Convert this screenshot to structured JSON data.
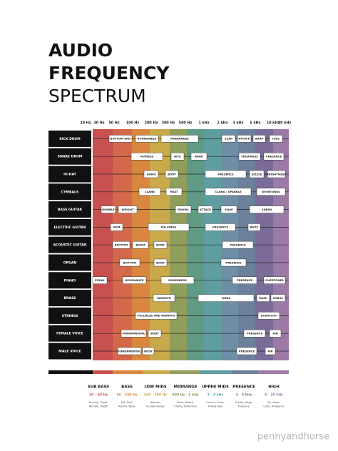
{
  "header": {
    "title": [
      "AUDIO",
      "FREQUENCY",
      "SPECTRUM"
    ]
  },
  "frequencies": [
    "20 Hz",
    "30 Hz",
    "50 Hz",
    "100 Hz",
    "200 Hz",
    "300 Hz",
    "500 Hz",
    "1 kHz",
    "2 kHz",
    "3 kHz",
    "5 kHz",
    "10 kHz",
    "20 kHz"
  ],
  "rows": [
    {
      "instrument": "KICK DRUM",
      "tags": [
        "BOTTOM END",
        "ROUNDNESS",
        "MUDDINESS",
        "SLAP",
        "ATTACK",
        "SNAP",
        "HISS"
      ]
    },
    {
      "instrument": "SNARE DRUM",
      "tags": [
        "FATNESS",
        "BITE",
        "BARK",
        "CRISPNESS",
        "PRESENCE"
      ]
    },
    {
      "instrument": "HI-HAT",
      "tags": [
        "GONG",
        "BODY",
        "PRESENCE",
        "SIZZLE",
        "BRIGHTNESS"
      ]
    },
    {
      "instrument": "CYMBALS",
      "tags": [
        "CLANK",
        "HEAT",
        "CLANG / SPARKLE",
        "OVERTONES"
      ]
    },
    {
      "instrument": "BASS GUITAR",
      "tags": [
        "RUMBLE",
        "WEIGHT",
        "GROWL",
        "ATTACK",
        "SNAP",
        "SHEEN"
      ]
    },
    {
      "instrument": "ELECTRIC GUITAR",
      "tags": [
        "HUM",
        "FULLNESS",
        "PRESENCE",
        "BUZZ"
      ]
    },
    {
      "instrument": "ACOUSTIC GUITAR",
      "tags": [
        "BOTTOM",
        "BOOM",
        "BODY",
        "PRESENCE"
      ]
    },
    {
      "instrument": "ORGAN",
      "tags": [
        "BOTTOM",
        "BODY",
        "PRESENCE"
      ]
    },
    {
      "instrument": "PIANO",
      "tags": [
        "PEDAL",
        "RESONANCE",
        "MUDDINESS",
        "PRESENCE",
        "OVERTONES"
      ]
    },
    {
      "instrument": "BRASS",
      "tags": [
        "WARMTH",
        "HONK",
        "RASP",
        "SHRILL"
      ]
    },
    {
      "instrument": "STRINGS",
      "tags": [
        "FULLNESS AND WARMTH",
        "SCRATCHY"
      ]
    },
    {
      "instrument": "FEMALE VOICE",
      "tags": [
        "FUNDAMENTAL",
        "BODY",
        "PRESENCE",
        "AIR"
      ]
    },
    {
      "instrument": "MALE VOICE",
      "tags": [
        "FUNDAMENTAL",
        "BODY",
        "PRESENCE",
        "AIR"
      ]
    }
  ],
  "bands": [
    {
      "name": "SUB BASS",
      "range": "20 - 60 Hz",
      "description": [
        "Punchy, Chest",
        "Rumble, Depth"
      ]
    },
    {
      "name": "BASS",
      "range": "60 - 250 Hz",
      "description": [
        "Fat, Feel,",
        "Roomy, Body"
      ]
    },
    {
      "name": "LOW MIDS",
      "range": "250 - 500 Hz",
      "description": [
        "Warmth,",
        "Fundamentals"
      ]
    },
    {
      "name": "MIDRANGE",
      "range": "500 Hz - 2 kHz",
      "description": [
        "Honk, Attack,",
        "Clarity, Distortion"
      ]
    },
    {
      "name": "UPPER MIDS",
      "range": "2 - 4 kHz",
      "description": [
        "Crunch, Crisp,",
        "Falling Rain"
      ]
    },
    {
      "name": "PRESENCE",
      "range": "4 - 6 kHz",
      "description": [
        "Clarity, Edge,",
        "Presence"
      ]
    },
    {
      "name": "HIGH",
      "range": "6 - 20 kHz",
      "description": [
        "Air, Open,",
        "Light, Ambience"
      ]
    }
  ],
  "watermark": "pennyandhorse"
}
